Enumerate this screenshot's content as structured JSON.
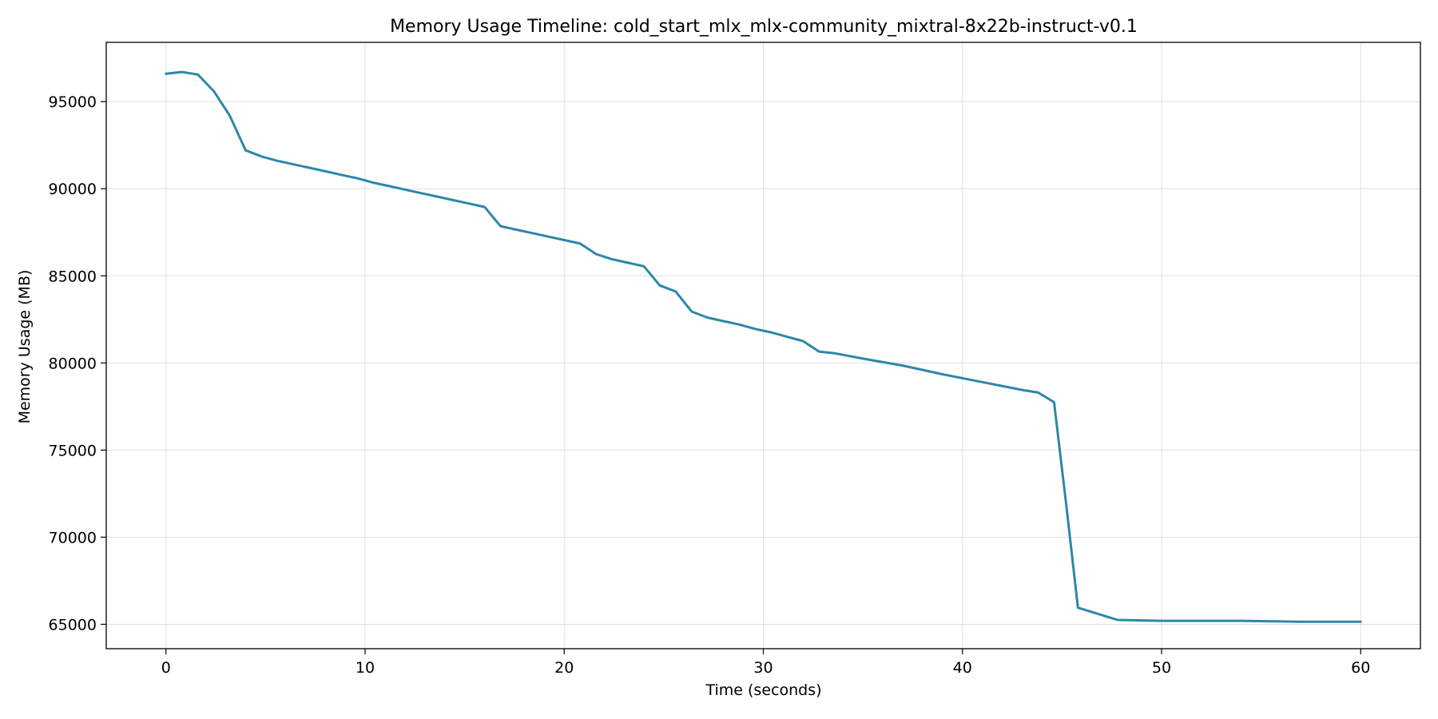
{
  "chart_data": {
    "type": "line",
    "title": "Memory Usage Timeline: cold_start_mlx_mlx-community_mixtral-8x22b-instruct-v0.1",
    "xlabel": "Time (seconds)",
    "ylabel": "Memory Usage (MB)",
    "xlim": [
      -3,
      63
    ],
    "ylim": [
      63600,
      98400
    ],
    "xticks": [
      0,
      10,
      20,
      30,
      40,
      50,
      60
    ],
    "yticks": [
      65000,
      70000,
      75000,
      80000,
      85000,
      90000,
      95000
    ],
    "grid": true,
    "series": [
      {
        "color": "#2e86ab",
        "x": [
          0,
          0.8,
          1.6,
          2.4,
          3.2,
          4.0,
          4.8,
          5.6,
          6.4,
          7.2,
          8.0,
          8.8,
          9.6,
          10.4,
          11.2,
          12.0,
          12.8,
          13.6,
          14.4,
          15.2,
          16.0,
          16.8,
          17.6,
          18.4,
          19.2,
          20.0,
          20.8,
          21.6,
          22.4,
          23.2,
          24.0,
          24.8,
          25.6,
          26.4,
          27.2,
          28.0,
          28.8,
          29.6,
          30.4,
          31.2,
          32.0,
          32.8,
          33.6,
          35.0,
          37.0,
          39.0,
          41.0,
          43.0,
          43.8,
          44.6,
          45.2,
          45.8,
          47.8,
          50.0,
          54.0,
          57.0,
          60.0
        ],
        "y": [
          96600,
          96700,
          96550,
          95600,
          94200,
          92200,
          91850,
          91600,
          91400,
          91200,
          91000,
          90800,
          90600,
          90350,
          90150,
          89950,
          89750,
          89550,
          89350,
          89150,
          88950,
          87850,
          87650,
          87450,
          87250,
          87050,
          86850,
          86250,
          85950,
          85750,
          85550,
          84450,
          84100,
          82950,
          82600,
          82400,
          82200,
          81950,
          81750,
          81500,
          81250,
          80650,
          80550,
          80250,
          79850,
          79350,
          78900,
          78450,
          78300,
          77750,
          72000,
          65950,
          65250,
          65200,
          65200,
          65150,
          65150
        ]
      }
    ]
  }
}
